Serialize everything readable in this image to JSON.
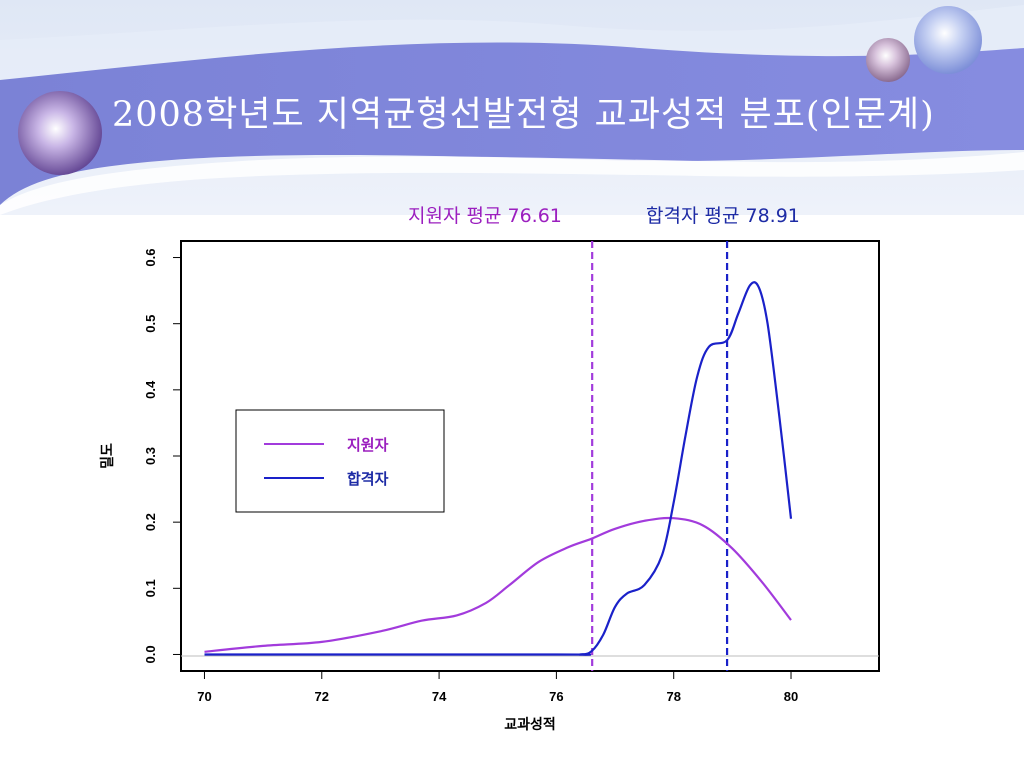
{
  "slide": {
    "title": "2008학년도 지역균형선발전형 교과성적 분포(인문계)"
  },
  "annotations": {
    "applicant_mean": "지원자 평균  76.61",
    "admitted_mean": "합격자 평균 78.91"
  },
  "colors": {
    "banner": "#7f86d8",
    "applicant": "#a23bdc",
    "admitted": "#1a21c9",
    "applicant_text": "#9b1fbf",
    "admitted_text": "#1d2ba5"
  },
  "chart_data": {
    "type": "line",
    "xlabel": "교과성적",
    "ylabel": "밀도",
    "xlim": [
      69.6,
      81.5
    ],
    "ylim": [
      -0.025,
      0.625
    ],
    "x_ticks": [
      70,
      72,
      74,
      76,
      78,
      80
    ],
    "y_ticks": [
      0.0,
      0.1,
      0.2,
      0.3,
      0.4,
      0.5,
      0.6
    ],
    "x_tick_labels": [
      "70",
      "72",
      "74",
      "76",
      "78",
      "80"
    ],
    "y_tick_labels": [
      "0.0",
      "0.1",
      "0.2",
      "0.3",
      "0.4",
      "0.5",
      "0.6"
    ],
    "legend_position": "left-middle",
    "grid": false,
    "mean_lines": [
      {
        "x": 76.61,
        "series": "지원자"
      },
      {
        "x": 78.91,
        "series": "합격자"
      }
    ],
    "series": [
      {
        "name": "지원자",
        "color": "#a23bdc",
        "x": [
          70.0,
          71.0,
          72.0,
          73.0,
          73.7,
          74.3,
          74.8,
          75.2,
          75.7,
          76.2,
          76.6,
          77.0,
          77.5,
          78.0,
          78.5,
          79.0,
          79.5,
          80.0
        ],
        "y": [
          0.004,
          0.013,
          0.019,
          0.035,
          0.051,
          0.059,
          0.078,
          0.105,
          0.14,
          0.162,
          0.175,
          0.19,
          0.202,
          0.206,
          0.195,
          0.16,
          0.11,
          0.052
        ]
      },
      {
        "name": "합격자",
        "color": "#1a21c9",
        "x": [
          70.0,
          76.0,
          76.4,
          76.6,
          76.8,
          77.0,
          77.2,
          77.5,
          77.8,
          78.0,
          78.2,
          78.4,
          78.6,
          78.91,
          79.1,
          79.3,
          79.45,
          79.6,
          79.8,
          80.0
        ],
        "y": [
          0.0,
          0.0,
          0.0,
          0.005,
          0.03,
          0.072,
          0.092,
          0.105,
          0.15,
          0.23,
          0.33,
          0.42,
          0.465,
          0.475,
          0.515,
          0.558,
          0.555,
          0.5,
          0.36,
          0.205
        ]
      }
    ]
  }
}
